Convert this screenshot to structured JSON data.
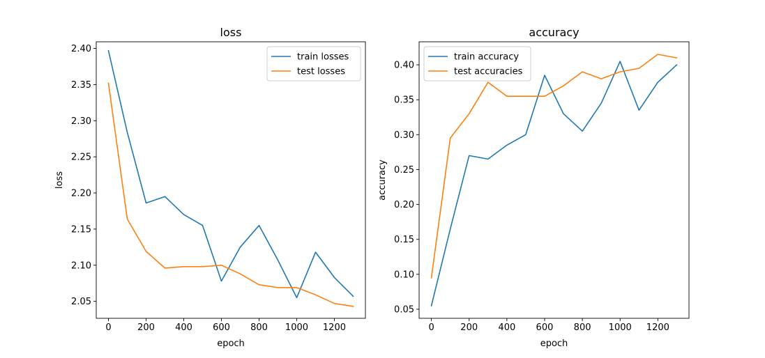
{
  "chart_data": [
    {
      "type": "line",
      "title": "loss",
      "xlabel": "epoch",
      "ylabel": "loss",
      "x": [
        0,
        100,
        200,
        300,
        400,
        500,
        600,
        700,
        800,
        900,
        1000,
        1100,
        1200,
        1300
      ],
      "xlim": [
        -65,
        1365
      ],
      "ylim": [
        2.0265,
        2.4092
      ],
      "xticks": [
        0,
        200,
        400,
        600,
        800,
        1000,
        1200
      ],
      "yticks": [
        2.05,
        2.1,
        2.15,
        2.2,
        2.25,
        2.3,
        2.35,
        2.4
      ],
      "ytick_labels": [
        "2.05",
        "2.10",
        "2.15",
        "2.20",
        "2.25",
        "2.30",
        "2.35",
        "2.40"
      ],
      "series": [
        {
          "name": "train losses",
          "color": "#1f77b4",
          "values": [
            2.397,
            2.284,
            2.186,
            2.195,
            2.17,
            2.155,
            2.078,
            2.125,
            2.155,
            2.107,
            2.055,
            2.118,
            2.083,
            2.057
          ]
        },
        {
          "name": "test losses",
          "color": "#ff7f0e",
          "values": [
            2.352,
            2.164,
            2.119,
            2.096,
            2.098,
            2.098,
            2.1,
            2.088,
            2.073,
            2.069,
            2.069,
            2.059,
            2.047,
            2.043
          ]
        }
      ],
      "legend": "top-right",
      "grid": false
    },
    {
      "type": "line",
      "title": "accuracy",
      "xlabel": "epoch",
      "ylabel": "accuracy",
      "x": [
        0,
        100,
        200,
        300,
        400,
        500,
        600,
        700,
        800,
        900,
        1000,
        1100,
        1200,
        1300
      ],
      "xlim": [
        -65,
        1365
      ],
      "ylim": [
        0.037,
        0.433
      ],
      "xticks": [
        0,
        200,
        400,
        600,
        800,
        1000,
        1200
      ],
      "yticks": [
        0.05,
        0.1,
        0.15,
        0.2,
        0.25,
        0.3,
        0.35,
        0.4
      ],
      "ytick_labels": [
        "0.05",
        "0.10",
        "0.15",
        "0.20",
        "0.25",
        "0.30",
        "0.35",
        "0.40"
      ],
      "series": [
        {
          "name": "train accuracy",
          "color": "#1f77b4",
          "values": [
            0.055,
            0.165,
            0.27,
            0.265,
            0.285,
            0.3,
            0.385,
            0.33,
            0.305,
            0.345,
            0.405,
            0.335,
            0.375,
            0.4
          ]
        },
        {
          "name": "test accuracies",
          "color": "#ff7f0e",
          "values": [
            0.095,
            0.295,
            0.33,
            0.375,
            0.355,
            0.355,
            0.355,
            0.37,
            0.39,
            0.38,
            0.39,
            0.395,
            0.415,
            0.41
          ]
        }
      ],
      "legend": "top-left",
      "grid": false
    }
  ]
}
